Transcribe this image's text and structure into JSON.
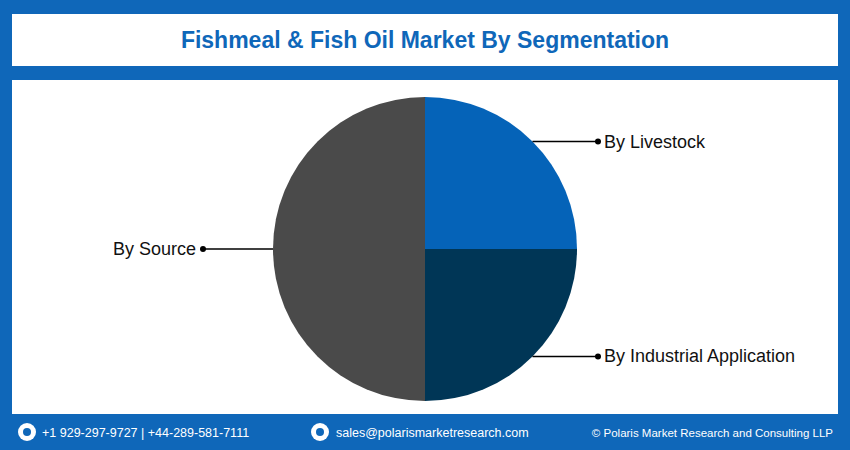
{
  "chart_data": {
    "type": "pie",
    "title": "Fishmeal & Fish Oil Market By Segmentation",
    "categories": [
      "By Livestock",
      "By Industrial Application",
      "By Source"
    ],
    "values": [
      25,
      25,
      50
    ],
    "colors": [
      "#0563b8",
      "#003656",
      "#4a4a4a"
    ]
  },
  "footer": {
    "phone": "+1 929-297-9727 | +44-289-581-7111",
    "email": "sales@polarismarketresearch.com",
    "copyright": "© Polaris Market Research and Consulting LLP"
  }
}
